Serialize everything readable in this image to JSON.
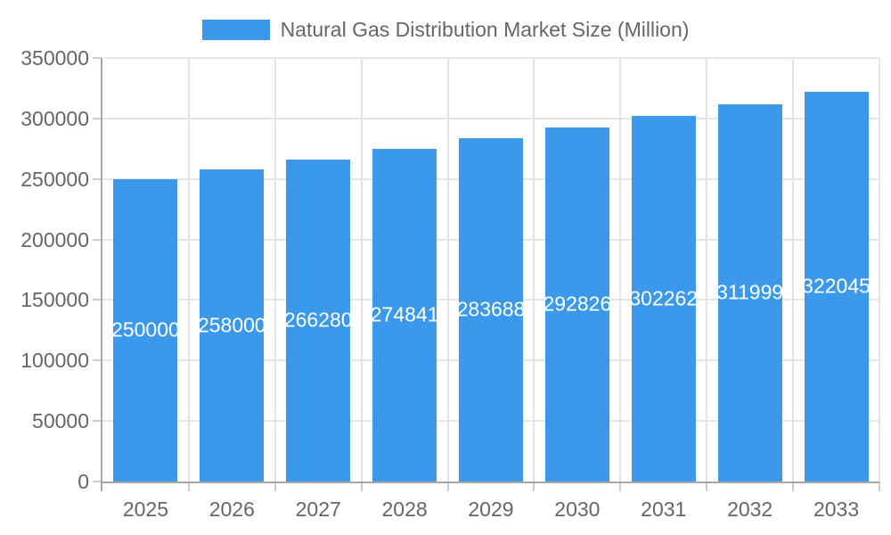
{
  "chart_data": {
    "type": "bar",
    "title": "Natural Gas Distribution Market Size (Million)",
    "categories": [
      "2025",
      "2026",
      "2027",
      "2028",
      "2029",
      "2030",
      "2031",
      "2032",
      "2033"
    ],
    "series": [
      {
        "name": "Natural Gas Distribution Market Size (Million)",
        "values": [
          250000,
          258000,
          266280,
          274841,
          283688,
          292826,
          302262,
          311999,
          322045
        ]
      }
    ],
    "xlabel": "",
    "ylabel": "",
    "ylim": [
      0,
      350000
    ],
    "y_ticks": [
      0,
      50000,
      100000,
      150000,
      200000,
      250000,
      300000,
      350000
    ],
    "grid": true,
    "legend_position": "top",
    "value_labels_position": "inside-center"
  },
  "colors": {
    "bar": "#3b99ec",
    "bar_value_label": "#ffffff",
    "axis_text": "#666666",
    "legend_text": "#666666",
    "gridline": "#e5e5e5",
    "tick_mark": "#cccccc",
    "axis_line": "#a7a7a7",
    "background": "#ffffff"
  }
}
